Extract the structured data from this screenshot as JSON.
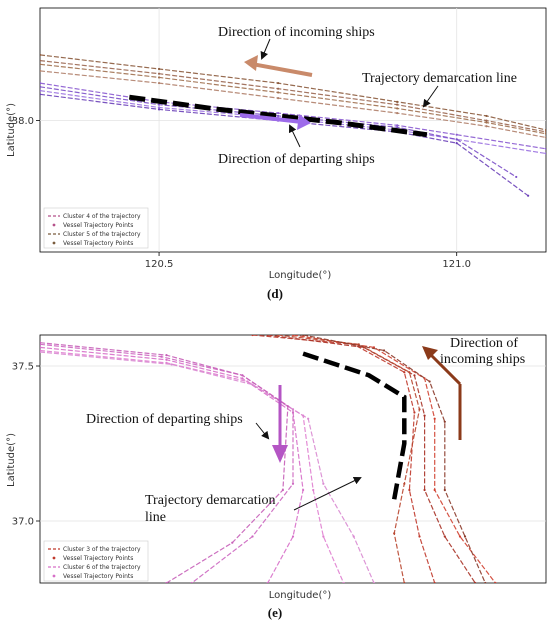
{
  "chart_data": [
    {
      "type": "line",
      "panel_label": "(d)",
      "xlabel": "Longitude(°)",
      "ylabel": "Latitude(°)",
      "xlim": [
        120.3,
        121.15
      ],
      "ylim": [
        37.86,
        38.12
      ],
      "xticks": [
        120.5,
        121.0
      ],
      "xtick_labels": [
        "120.5",
        "121.0"
      ],
      "yticks": [
        38.0
      ],
      "ytick_labels": [
        "38.0"
      ],
      "grid": true,
      "legend_position": "bottom-left",
      "legend": [
        {
          "label": "Cluster 4 of the trajectory",
          "style": "dash",
          "color": "#b5528a"
        },
        {
          "label": "Vessel Trajectory Points",
          "style": "dot",
          "color": "#b5528a"
        },
        {
          "label": "Cluster 5 of the trajectory",
          "style": "dash",
          "color": "#7a5c3e"
        },
        {
          "label": "Vessel Trajectory Points",
          "style": "dot",
          "color": "#7a5c3e"
        }
      ],
      "series": [
        {
          "color": "#8b5a3c",
          "x": [
            120.3,
            120.5,
            120.7,
            120.9,
            121.05,
            121.15
          ],
          "y": [
            38.07,
            38.055,
            38.04,
            38.02,
            38.005,
            37.99
          ]
        },
        {
          "color": "#a0704f",
          "x": [
            120.3,
            120.5,
            120.7,
            120.9,
            121.05,
            121.15
          ],
          "y": [
            38.06,
            38.046,
            38.03,
            38.013,
            37.998,
            37.986
          ]
        },
        {
          "color": "#b0806a",
          "x": [
            120.3,
            120.5,
            120.7,
            120.9,
            121.05,
            121.15
          ],
          "y": [
            38.053,
            38.04,
            38.024,
            38.008,
            37.994,
            37.982
          ]
        },
        {
          "color": "#9a6650",
          "x": [
            120.3,
            120.5,
            120.7,
            120.9,
            121.05,
            121.15
          ],
          "y": [
            38.064,
            38.05,
            38.034,
            38.017,
            38.0,
            37.988
          ]
        },
        {
          "color": "#8a5ad0",
          "x": [
            120.3,
            120.5,
            120.7,
            120.9,
            121.0,
            121.15
          ],
          "y": [
            38.04,
            38.02,
            38.008,
            37.995,
            37.985,
            37.97
          ]
        },
        {
          "color": "#9a70e0",
          "x": [
            120.3,
            120.5,
            120.7,
            120.9,
            121.0,
            121.15
          ],
          "y": [
            38.032,
            38.014,
            38.003,
            37.99,
            37.98,
            37.965
          ]
        },
        {
          "color": "#7b4fc8",
          "x": [
            120.3,
            120.5,
            120.7,
            120.9,
            121.0,
            121.1
          ],
          "y": [
            38.036,
            38.017,
            38.005,
            37.993,
            37.98,
            37.94
          ]
        },
        {
          "color": "#6a40b8",
          "x": [
            120.3,
            120.5,
            120.7,
            120.9,
            121.0,
            121.12
          ],
          "y": [
            38.028,
            38.012,
            38.0,
            37.988,
            37.976,
            37.92
          ]
        }
      ],
      "demarcation_line": {
        "x": [
          120.45,
          120.6,
          120.8,
          120.95
        ],
        "y": [
          38.025,
          38.012,
          37.998,
          37.985
        ]
      },
      "annotations": [
        {
          "text": "Direction of incoming ships"
        },
        {
          "text": "Trajectory demarcation line"
        },
        {
          "text": "Direction of departing ships"
        }
      ]
    },
    {
      "type": "line",
      "panel_label": "(e)",
      "xlabel": "Longitude(°)",
      "ylabel": "Latitude(°)",
      "xlim": [
        0,
        1
      ],
      "ylim": [
        36.8,
        37.6
      ],
      "yticks": [
        37.5,
        37.0
      ],
      "ytick_labels": [
        "37.5",
        "37.0"
      ],
      "grid": true,
      "legend_position": "bottom-left",
      "legend": [
        {
          "label": "Cluster 3 of the trajectory",
          "style": "dash",
          "color": "#c0392b"
        },
        {
          "label": "Vessel Trajectory Points",
          "style": "dot",
          "color": "#c0392b"
        },
        {
          "label": "Cluster 6 of the trajectory",
          "style": "dash",
          "color": "#d66fc8"
        },
        {
          "label": "Vessel Trajectory Points",
          "style": "dot",
          "color": "#d66fc8"
        }
      ],
      "series": [
        {
          "color": "#d76fc9",
          "x": [
            0.0,
            0.25,
            0.4,
            0.5,
            0.52,
            0.5,
            0.45
          ],
          "y": [
            37.56,
            37.52,
            37.46,
            37.35,
            37.1,
            36.95,
            36.8
          ]
        },
        {
          "color": "#e07fd0",
          "x": [
            0.0,
            0.25,
            0.41,
            0.52,
            0.54,
            0.56,
            0.6
          ],
          "y": [
            37.55,
            37.51,
            37.45,
            37.34,
            37.1,
            36.95,
            36.8
          ]
        },
        {
          "color": "#cc66c0",
          "x": [
            0.0,
            0.24,
            0.4,
            0.5,
            0.5,
            0.42,
            0.3
          ],
          "y": [
            37.57,
            37.53,
            37.47,
            37.36,
            37.12,
            36.95,
            36.8
          ]
        },
        {
          "color": "#d98ad2",
          "x": [
            0.0,
            0.26,
            0.42,
            0.53,
            0.56,
            0.62,
            0.66
          ],
          "y": [
            37.545,
            37.505,
            37.44,
            37.33,
            37.12,
            36.95,
            36.8
          ]
        },
        {
          "color": "#c75fb8",
          "x": [
            0.0,
            0.25,
            0.4,
            0.49,
            0.48,
            0.38,
            0.25
          ],
          "y": [
            37.575,
            37.535,
            37.47,
            37.37,
            37.1,
            36.93,
            36.8
          ]
        },
        {
          "color": "#c0392b",
          "x": [
            0.42,
            0.62,
            0.72,
            0.74,
            0.73,
            0.75,
            0.78
          ],
          "y": [
            37.6,
            37.57,
            37.48,
            37.35,
            37.1,
            36.95,
            36.8
          ]
        },
        {
          "color": "#a93226",
          "x": [
            0.45,
            0.64,
            0.74,
            0.76,
            0.76,
            0.8,
            0.86
          ],
          "y": [
            37.6,
            37.56,
            37.47,
            37.34,
            37.1,
            36.95,
            36.8
          ]
        },
        {
          "color": "#d04030",
          "x": [
            0.5,
            0.66,
            0.76,
            0.78,
            0.78,
            0.83,
            0.9
          ],
          "y": [
            37.6,
            37.56,
            37.46,
            37.33,
            37.1,
            36.95,
            36.8
          ]
        },
        {
          "color": "#b8452e",
          "x": [
            0.47,
            0.63,
            0.73,
            0.75,
            0.72,
            0.7,
            0.72
          ],
          "y": [
            37.6,
            37.57,
            37.48,
            37.36,
            37.12,
            36.96,
            36.8
          ]
        },
        {
          "color": "#8b3a2a",
          "x": [
            0.52,
            0.68,
            0.77,
            0.8,
            0.8,
            0.84,
            0.88
          ],
          "y": [
            37.6,
            37.55,
            37.45,
            37.32,
            37.1,
            36.95,
            36.8
          ]
        }
      ],
      "demarcation_line": {
        "x": [
          0.52,
          0.65,
          0.72,
          0.72,
          0.7
        ],
        "y": [
          37.54,
          37.47,
          37.4,
          37.25,
          37.07
        ]
      },
      "annotations": [
        {
          "text": "Direction of incoming ships"
        },
        {
          "text": "Direction of departing ships"
        },
        {
          "text": "Trajectory demarcation line"
        }
      ]
    }
  ]
}
